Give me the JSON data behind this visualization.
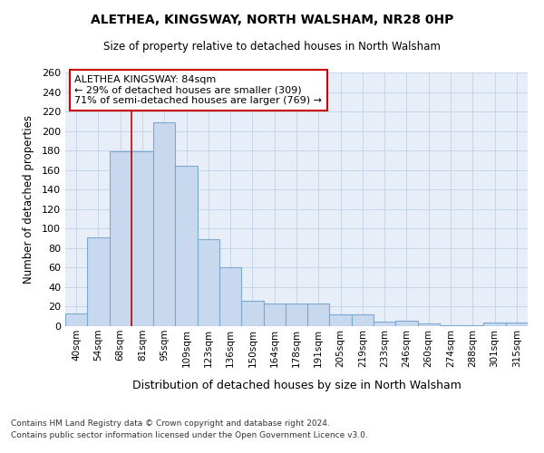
{
  "title_line1": "ALETHEA, KINGSWAY, NORTH WALSHAM, NR28 0HP",
  "title_line2": "Size of property relative to detached houses in North Walsham",
  "xlabel": "Distribution of detached houses by size in North Walsham",
  "ylabel": "Number of detached properties",
  "bar_color": "#c8d8ee",
  "bar_edge_color": "#7aaad0",
  "categories": [
    "40sqm",
    "54sqm",
    "68sqm",
    "81sqm",
    "95sqm",
    "109sqm",
    "123sqm",
    "136sqm",
    "150sqm",
    "164sqm",
    "178sqm",
    "191sqm",
    "205sqm",
    "219sqm",
    "233sqm",
    "246sqm",
    "260sqm",
    "274sqm",
    "288sqm",
    "301sqm",
    "315sqm"
  ],
  "values": [
    13,
    91,
    179,
    179,
    209,
    164,
    89,
    60,
    26,
    23,
    23,
    23,
    12,
    12,
    5,
    6,
    3,
    1,
    1,
    4,
    4
  ],
  "vline_x": 3,
  "vline_color": "#cc0000",
  "annotation_text": "ALETHEA KINGSWAY: 84sqm\n← 29% of detached houses are smaller (309)\n71% of semi-detached houses are larger (769) →",
  "ylim": [
    0,
    260
  ],
  "yticks": [
    0,
    20,
    40,
    60,
    80,
    100,
    120,
    140,
    160,
    180,
    200,
    220,
    240,
    260
  ],
  "footer_line1": "Contains HM Land Registry data © Crown copyright and database right 2024.",
  "footer_line2": "Contains public sector information licensed under the Open Government Licence v3.0.",
  "grid_color": "#c8d4e8",
  "background_color": "#e8eef8"
}
